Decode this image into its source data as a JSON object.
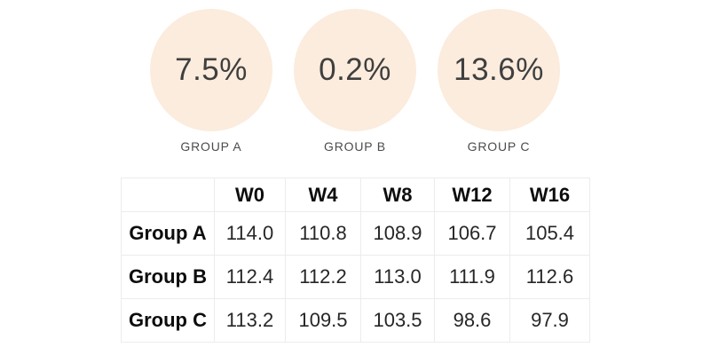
{
  "stats": {
    "circle_color": "#fbecdd",
    "items": [
      {
        "value": "7.5%",
        "label": "GROUP A"
      },
      {
        "value": "0.2%",
        "label": "GROUP B"
      },
      {
        "value": "13.6%",
        "label": "GROUP C"
      }
    ]
  },
  "table": {
    "corner_label": "",
    "columns": [
      "W0",
      "W4",
      "W8",
      "W12",
      "W16"
    ],
    "rows": [
      {
        "label": "Group A",
        "cells": [
          "114.0",
          "110.8",
          "108.9",
          "106.7",
          "105.4"
        ]
      },
      {
        "label": "Group B",
        "cells": [
          "112.4",
          "112.2",
          "113.0",
          "111.9",
          "112.6"
        ]
      },
      {
        "label": "Group C",
        "cells": [
          "113.2",
          "109.5",
          "103.5",
          "98.6",
          "97.9"
        ]
      }
    ]
  },
  "chart_data": {
    "type": "table",
    "title": "",
    "categories": [
      "W0",
      "W4",
      "W8",
      "W12",
      "W16"
    ],
    "series": [
      {
        "name": "Group A",
        "values": [
          114.0,
          110.8,
          108.9,
          106.7,
          105.4
        ]
      },
      {
        "name": "Group B",
        "values": [
          112.4,
          112.2,
          113.0,
          111.9,
          112.6
        ]
      },
      {
        "name": "Group C",
        "values": [
          113.2,
          109.5,
          103.5,
          98.6,
          97.9
        ]
      }
    ],
    "callouts": [
      {
        "group": "GROUP A",
        "percent": "7.5%"
      },
      {
        "group": "GROUP B",
        "percent": "0.2%"
      },
      {
        "group": "GROUP C",
        "percent": "13.6%"
      }
    ],
    "layout": {
      "grid": "full-borders",
      "circle_fill": "#fbecdd",
      "background": "#ffffff"
    }
  }
}
